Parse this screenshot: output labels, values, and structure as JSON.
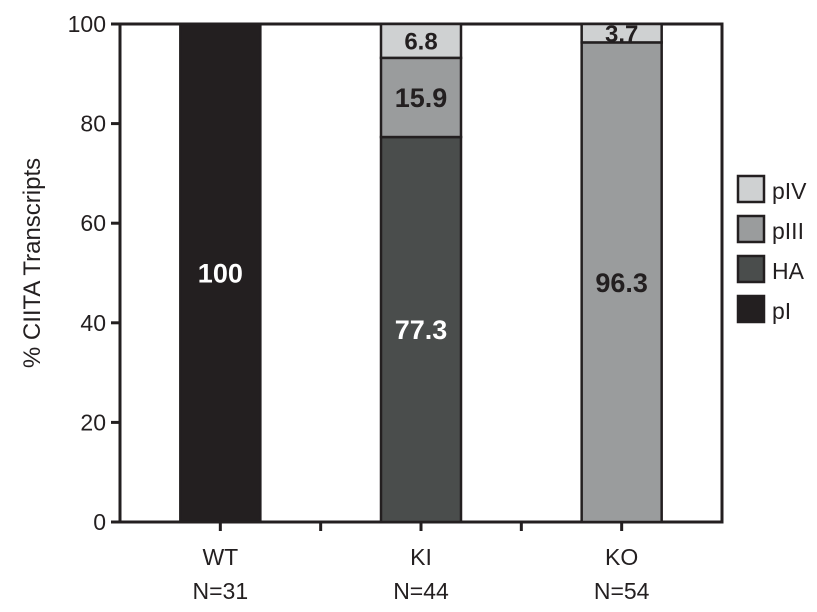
{
  "chart_data": {
    "type": "bar",
    "stacked": true,
    "title": "",
    "xlabel": "",
    "ylabel": "% CIITA Transcripts",
    "ylim": [
      0,
      100
    ],
    "yticks": [
      "0",
      "20",
      "40",
      "60",
      "80",
      "100"
    ],
    "grid": false,
    "legend_position": "right",
    "categories": [
      {
        "name": "WT",
        "n": "N=31"
      },
      {
        "name": "KI",
        "n": "N=44"
      },
      {
        "name": "KO",
        "n": "N=54"
      }
    ],
    "series": [
      {
        "name": "pI",
        "color": "#231f20",
        "label_color": "#ffffff",
        "values": [
          100,
          0,
          0
        ],
        "labels": [
          "100",
          "",
          ""
        ]
      },
      {
        "name": "HA",
        "color": "#4a4d4c",
        "label_color": "#ffffff",
        "values": [
          0,
          77.3,
          0
        ],
        "labels": [
          "",
          "77.3",
          ""
        ]
      },
      {
        "name": "pIII",
        "color": "#9a9c9d",
        "label_color": "#231f20",
        "values": [
          0,
          15.9,
          96.3
        ],
        "labels": [
          "",
          "15.9",
          "96.3"
        ]
      },
      {
        "name": "pIV",
        "color": "#cfd1d2",
        "label_color": "#231f20",
        "values": [
          0,
          6.8,
          3.7
        ],
        "labels": [
          "",
          "6.8",
          "3.7"
        ]
      }
    ],
    "legend_order": [
      "pIV",
      "pIII",
      "HA",
      "pI"
    ]
  }
}
